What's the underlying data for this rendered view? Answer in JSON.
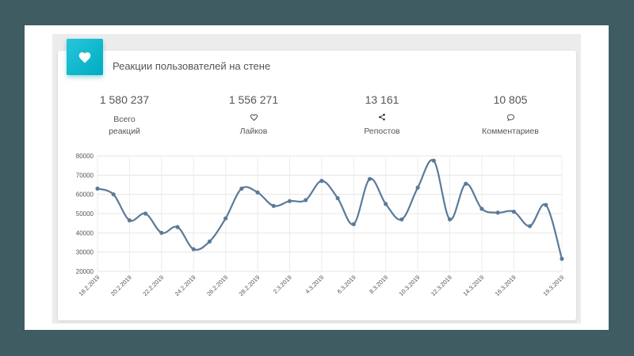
{
  "card": {
    "title": "Реакции пользователей на стене",
    "badge_icon": "heart-icon",
    "accent_color": "#26c6da"
  },
  "stats": [
    {
      "value": "1 580 237",
      "label_line1": "Всего",
      "label_line2": "реакций",
      "icon": ""
    },
    {
      "value": "1 556 271",
      "label_line1": "Лайков",
      "label_line2": "",
      "icon": "heart-outline-icon"
    },
    {
      "value": "13 161",
      "label_line1": "Репостов",
      "label_line2": "",
      "icon": "share-icon"
    },
    {
      "value": "10 805",
      "label_line1": "Комментариев",
      "label_line2": "",
      "icon": "comment-icon"
    }
  ],
  "chart_data": {
    "type": "line",
    "line_color": "#5b7a99",
    "ylim": [
      20000,
      80000
    ],
    "y_ticks": [
      "20000",
      "30000",
      "40000",
      "50000",
      "60000",
      "70000",
      "80000"
    ],
    "x_tick_labels": [
      "18.2.2019",
      "20.2.2019",
      "22.2.2019",
      "24.2.2019",
      "26.2.2019",
      "28.2.2019",
      "2.3.2019",
      "4.3.2019",
      "6.3.2019",
      "8.3.2019",
      "10.3.2019",
      "12.3.2019",
      "14.3.2019",
      "16.3.2019",
      "19.3.2019"
    ],
    "x": [
      "18.2.2019",
      "19.2.2019",
      "20.2.2019",
      "21.2.2019",
      "22.2.2019",
      "23.2.2019",
      "24.2.2019",
      "25.2.2019",
      "26.2.2019",
      "27.2.2019",
      "28.2.2019",
      "1.3.2019",
      "2.3.2019",
      "3.3.2019",
      "4.3.2019",
      "5.3.2019",
      "6.3.2019",
      "7.3.2019",
      "8.3.2019",
      "9.3.2019",
      "10.3.2019",
      "11.3.2019",
      "12.3.2019",
      "13.3.2019",
      "14.3.2019",
      "15.3.2019",
      "16.3.2019",
      "17.3.2019",
      "18.3.2019",
      "19.3.2019"
    ],
    "values": [
      63000,
      60000,
      46500,
      50000,
      40000,
      43000,
      31500,
      35500,
      47500,
      63000,
      61000,
      54000,
      56500,
      57000,
      67000,
      58000,
      44500,
      68000,
      55000,
      47000,
      63500,
      77500,
      47000,
      65500,
      52500,
      50500,
      51000,
      43500,
      54500,
      26500
    ],
    "grid": true
  }
}
